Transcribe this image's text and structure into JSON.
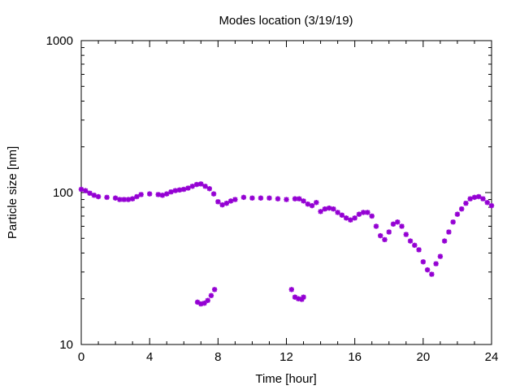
{
  "chart_data": {
    "type": "scatter",
    "title": "Modes location (3/19/19)",
    "xlabel": "Time [hour]",
    "ylabel": "Particle size [nm]",
    "xlim": [
      0,
      24
    ],
    "ylim": [
      10,
      1000
    ],
    "yscale": "log",
    "x_ticks": [
      0,
      4,
      8,
      12,
      16,
      20,
      24
    ],
    "x_tick_labels": [
      "0",
      "4",
      "8",
      "12",
      "16",
      "20",
      "24"
    ],
    "y_ticks": [
      10,
      100,
      1000
    ],
    "y_tick_labels": [
      "10",
      "100",
      "1000"
    ],
    "grid": false,
    "legend": "none",
    "marker": "*",
    "marker_color": "#9400d3",
    "series": [
      {
        "points": [
          [
            0.0,
            105
          ],
          [
            0.25,
            103
          ],
          [
            0.5,
            99
          ],
          [
            0.75,
            96
          ],
          [
            1.0,
            94
          ],
          [
            1.5,
            93
          ],
          [
            2.0,
            92
          ],
          [
            2.25,
            90
          ],
          [
            2.5,
            90
          ],
          [
            2.75,
            90
          ],
          [
            3.0,
            91
          ],
          [
            3.25,
            94
          ],
          [
            3.5,
            97
          ],
          [
            4.0,
            98
          ],
          [
            4.5,
            97
          ],
          [
            4.75,
            96
          ],
          [
            5.0,
            98
          ],
          [
            5.25,
            101
          ],
          [
            5.5,
            103
          ],
          [
            5.75,
            104
          ],
          [
            6.0,
            105
          ],
          [
            6.25,
            107
          ],
          [
            6.5,
            110
          ],
          [
            6.75,
            113
          ],
          [
            7.0,
            114
          ],
          [
            7.25,
            110
          ],
          [
            7.5,
            106
          ],
          [
            7.75,
            98
          ],
          [
            8.0,
            87
          ],
          [
            8.25,
            83
          ],
          [
            8.5,
            85
          ],
          [
            8.75,
            88
          ],
          [
            9.0,
            90
          ],
          [
            9.5,
            93
          ],
          [
            10.0,
            92
          ],
          [
            10.5,
            92
          ],
          [
            11.0,
            92
          ],
          [
            11.5,
            91
          ],
          [
            12.0,
            90
          ],
          [
            12.5,
            91
          ],
          [
            12.75,
            91
          ],
          [
            13.0,
            88
          ],
          [
            13.25,
            84
          ],
          [
            13.5,
            82
          ],
          [
            13.75,
            86
          ],
          [
            14.0,
            75
          ],
          [
            14.25,
            78
          ],
          [
            14.5,
            79
          ],
          [
            14.75,
            78
          ],
          [
            15.0,
            74
          ],
          [
            15.25,
            71
          ],
          [
            15.5,
            68
          ],
          [
            15.75,
            66
          ],
          [
            16.0,
            68
          ],
          [
            16.25,
            72
          ],
          [
            16.5,
            74
          ],
          [
            16.75,
            74
          ],
          [
            17.0,
            70
          ],
          [
            17.25,
            60
          ],
          [
            17.5,
            52
          ],
          [
            17.75,
            49
          ],
          [
            18.0,
            55
          ],
          [
            18.25,
            62
          ],
          [
            18.5,
            64
          ],
          [
            18.75,
            60
          ],
          [
            19.0,
            53
          ],
          [
            19.25,
            48
          ],
          [
            19.5,
            45
          ],
          [
            19.75,
            42
          ],
          [
            20.0,
            35
          ],
          [
            20.25,
            31
          ],
          [
            20.5,
            29
          ],
          [
            20.75,
            34
          ],
          [
            21.0,
            38
          ],
          [
            21.25,
            48
          ],
          [
            21.5,
            55
          ],
          [
            21.75,
            64
          ],
          [
            22.0,
            72
          ],
          [
            22.25,
            78
          ],
          [
            22.5,
            85
          ],
          [
            22.75,
            91
          ],
          [
            23.0,
            93
          ],
          [
            23.25,
            94
          ],
          [
            23.5,
            91
          ],
          [
            23.75,
            86
          ],
          [
            24.0,
            82
          ]
        ]
      },
      {
        "points": [
          [
            6.8,
            19
          ],
          [
            7.0,
            18.5
          ],
          [
            7.2,
            18.7
          ],
          [
            7.4,
            19.5
          ],
          [
            7.6,
            21
          ],
          [
            7.8,
            23
          ]
        ]
      },
      {
        "points": [
          [
            12.3,
            23
          ],
          [
            12.5,
            20.5
          ],
          [
            12.7,
            20
          ],
          [
            12.9,
            19.8
          ],
          [
            13.0,
            20.5
          ]
        ]
      }
    ]
  }
}
